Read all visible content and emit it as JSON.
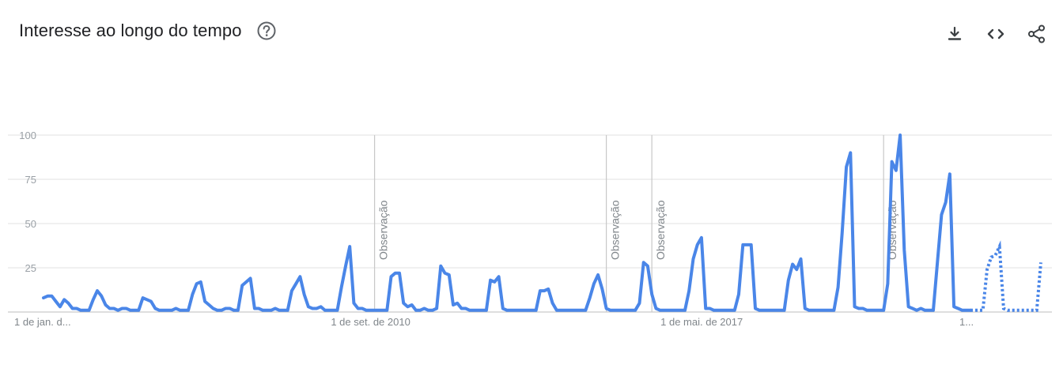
{
  "header": {
    "title": "Interesse ao longo do tempo",
    "help_icon": "help-circle-icon",
    "actions": [
      "download-icon",
      "embed-code-icon",
      "share-icon"
    ]
  },
  "colors": {
    "line": "#4a86e8",
    "grid": "#e0e0e0",
    "annotation_line": "#c8c8c8"
  },
  "chart_data": {
    "type": "line",
    "title": "Interesse ao longo do tempo",
    "ylim": [
      0,
      100
    ],
    "yticks": [
      25,
      50,
      75,
      100
    ],
    "grid": true,
    "xtick_labels": [
      {
        "label": "1 de jan. d...",
        "index": 0
      },
      {
        "label": "1 de set. de 2010",
        "index": 80
      },
      {
        "label": "1 de mai. de 2017",
        "index": 160
      },
      {
        "label": "1...",
        "index": 224
      }
    ],
    "annotations": [
      {
        "label": "Observação",
        "index": 80
      },
      {
        "label": "Observação",
        "index": 136
      },
      {
        "label": "Observação",
        "index": 147
      },
      {
        "label": "Observação",
        "index": 203
      }
    ],
    "partial_from_index": 224,
    "values": [
      8,
      9,
      9,
      6,
      3,
      7,
      5,
      2,
      2,
      1,
      1,
      1,
      7,
      12,
      9,
      4,
      2,
      2,
      1,
      2,
      2,
      1,
      1,
      1,
      8,
      7,
      6,
      2,
      1,
      1,
      1,
      1,
      2,
      1,
      1,
      1,
      10,
      16,
      17,
      6,
      4,
      2,
      1,
      1,
      2,
      2,
      1,
      1,
      15,
      17,
      19,
      2,
      2,
      1,
      1,
      1,
      2,
      1,
      1,
      1,
      12,
      16,
      20,
      10,
      3,
      2,
      2,
      3,
      1,
      1,
      1,
      1,
      14,
      26,
      37,
      5,
      2,
      2,
      1,
      1,
      1,
      1,
      1,
      1,
      20,
      22,
      22,
      5,
      3,
      4,
      1,
      1,
      2,
      1,
      1,
      2,
      26,
      22,
      21,
      4,
      5,
      2,
      2,
      1,
      1,
      1,
      1,
      1,
      18,
      17,
      20,
      2,
      1,
      1,
      1,
      1,
      1,
      1,
      1,
      1,
      12,
      12,
      13,
      5,
      1,
      1,
      1,
      1,
      1,
      1,
      1,
      1,
      8,
      16,
      21,
      13,
      2,
      1,
      1,
      1,
      1,
      1,
      1,
      1,
      5,
      28,
      26,
      10,
      2,
      1,
      1,
      1,
      1,
      1,
      1,
      1,
      12,
      30,
      38,
      42,
      2,
      2,
      1,
      1,
      1,
      1,
      1,
      1,
      10,
      38,
      38,
      38,
      2,
      1,
      1,
      1,
      1,
      1,
      1,
      1,
      18,
      27,
      24,
      30,
      2,
      1,
      1,
      1,
      1,
      1,
      1,
      1,
      14,
      45,
      82,
      90,
      3,
      2,
      2,
      1,
      1,
      1,
      1,
      1,
      16,
      85,
      80,
      100,
      35,
      3,
      2,
      1,
      2,
      1,
      1,
      1,
      28,
      55,
      62,
      78,
      3,
      2,
      1,
      1,
      1,
      1,
      1,
      1,
      24,
      31,
      32,
      37,
      2,
      1,
      1,
      1,
      1,
      1,
      1,
      1,
      1,
      28
    ]
  }
}
